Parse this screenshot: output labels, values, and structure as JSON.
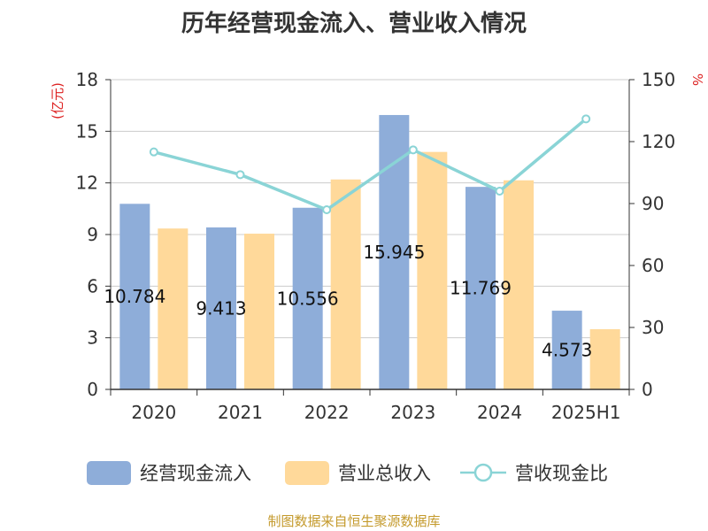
{
  "chart_data": {
    "type": "bar",
    "title": "历年经营现金流入、营业收入情况",
    "categories": [
      "2020",
      "2021",
      "2022",
      "2023",
      "2024",
      "2025H1"
    ],
    "y_left": {
      "unit": "(亿元)",
      "range": [
        0,
        18
      ],
      "ticks": [
        0,
        3,
        6,
        9,
        12,
        15,
        18
      ]
    },
    "y_right": {
      "unit": "%",
      "range": [
        0,
        150
      ],
      "ticks": [
        0,
        30,
        60,
        90,
        120,
        150
      ]
    },
    "series": [
      {
        "name": "经营现金流入",
        "kind": "bar",
        "axis": "left",
        "color": "#8eadd9",
        "values": [
          10.784,
          9.413,
          10.556,
          15.945,
          11.769,
          4.573
        ],
        "labels": [
          "10.784",
          "9.413",
          "10.556",
          "15.945",
          "11.769",
          "4.573"
        ]
      },
      {
        "name": "营业总收入",
        "kind": "bar",
        "axis": "left",
        "color": "#ffd99a",
        "values": [
          9.35,
          9.05,
          12.2,
          13.8,
          12.15,
          3.5
        ]
      },
      {
        "name": "营收现金比",
        "kind": "line",
        "axis": "right",
        "color": "#8ad4d6",
        "values": [
          115,
          104,
          87,
          116,
          96,
          131
        ]
      }
    ],
    "grid": true,
    "legend_position": "bottom"
  },
  "footer": "制图数据来自恒生聚源数据库"
}
